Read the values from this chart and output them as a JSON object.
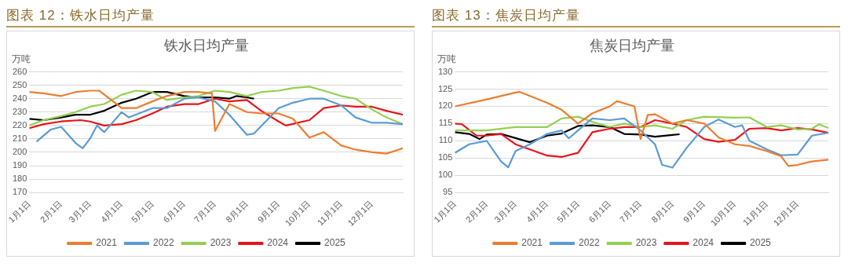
{
  "chart_data": [
    {
      "type": "line",
      "title": "图表 12：铁水日均产量",
      "subtitle": "铁水日均产量",
      "ylabel": "万吨",
      "xlim": [
        "--01-01",
        "--12-31"
      ],
      "xticks": [
        {
          "value": "--01-01",
          "label": "1月1日"
        },
        {
          "value": "--02-01",
          "label": "2月1日"
        },
        {
          "value": "--03-01",
          "label": "3月1日"
        },
        {
          "value": "--04-01",
          "label": "4月1日"
        },
        {
          "value": "--05-01",
          "label": "5月1日"
        },
        {
          "value": "--06-01",
          "label": "6月1日"
        },
        {
          "value": "--07-01",
          "label": "7月1日"
        },
        {
          "value": "--08-01",
          "label": "8月1日"
        },
        {
          "value": "--09-01",
          "label": "9月1日"
        },
        {
          "value": "--10-01",
          "label": "10月1日"
        },
        {
          "value": "--11-01",
          "label": "11月1日"
        },
        {
          "value": "--12-01",
          "label": "12月1日"
        }
      ],
      "ylim": [
        170,
        260
      ],
      "yticks": [
        170,
        180,
        190,
        200,
        210,
        220,
        230,
        240,
        250,
        260
      ],
      "grid": "y",
      "legend": "bottom",
      "marker": "none",
      "series": [
        {
          "name": "2021",
          "color": "#ed7d31",
          "x": [
            "--01-01",
            "--01-15",
            "--02-01",
            "--02-15",
            "--03-01",
            "--03-10",
            "--04-01",
            "--04-15",
            "--05-01",
            "--05-15",
            "--06-01",
            "--06-15",
            "--06-28",
            "--07-01",
            "--07-15",
            "--08-01",
            "--08-15",
            "--09-01",
            "--09-15",
            "--10-01",
            "--10-15",
            "--11-01",
            "--11-15",
            "--12-01",
            "--12-15",
            "--12-31"
          ],
          "values": [
            245,
            244,
            242,
            245,
            246,
            246,
            233,
            233,
            238,
            242,
            245,
            245,
            244,
            216,
            236,
            230,
            229,
            229,
            225,
            211,
            215,
            205,
            202,
            200,
            199,
            203
          ]
        },
        {
          "name": "2022",
          "color": "#5b9bd5",
          "x": [
            "--01-08",
            "--01-22",
            "--02-01",
            "--02-15",
            "--02-22",
            "--03-01",
            "--03-08",
            "--03-15",
            "--04-01",
            "--04-08",
            "--05-01",
            "--05-15",
            "--06-01",
            "--06-15",
            "--07-01",
            "--07-15",
            "--08-01",
            "--08-08",
            "--09-01",
            "--09-15",
            "--10-01",
            "--10-15",
            "--11-01",
            "--11-15",
            "--12-01",
            "--12-15",
            "--12-31"
          ],
          "values": [
            208,
            217,
            219,
            207,
            203,
            210,
            220,
            215,
            230,
            226,
            233,
            233,
            240,
            241,
            238,
            228,
            213,
            214,
            233,
            237,
            240,
            240,
            235,
            226,
            222,
            222,
            221
          ]
        },
        {
          "name": "2023",
          "color": "#92d050",
          "x": [
            "--01-01",
            "--01-15",
            "--02-01",
            "--02-15",
            "--03-01",
            "--03-15",
            "--04-01",
            "--04-15",
            "--05-01",
            "--05-15",
            "--06-01",
            "--06-15",
            "--07-01",
            "--07-15",
            "--08-01",
            "--08-15",
            "--09-01",
            "--09-15",
            "--10-01",
            "--10-15",
            "--11-01",
            "--11-15",
            "--12-01",
            "--12-15",
            "--12-31"
          ],
          "values": [
            220,
            224,
            227,
            230,
            234,
            236,
            243,
            246,
            245,
            239,
            241,
            242,
            246,
            245,
            242,
            245,
            246,
            248,
            249,
            246,
            242,
            240,
            232,
            226,
            221
          ]
        },
        {
          "name": "2024",
          "color": "#e8141a",
          "x": [
            "--01-01",
            "--01-15",
            "--02-01",
            "--02-20",
            "--03-01",
            "--03-15",
            "--04-01",
            "--04-15",
            "--05-01",
            "--05-15",
            "--06-01",
            "--06-15",
            "--07-01",
            "--07-15",
            "--08-01",
            "--08-15",
            "--09-01",
            "--09-08",
            "--10-01",
            "--10-15",
            "--11-01",
            "--11-15",
            "--12-01",
            "--12-15",
            "--12-31"
          ],
          "values": [
            218,
            221,
            223,
            224,
            223,
            220,
            221,
            224,
            229,
            234,
            236,
            236,
            240,
            238,
            239,
            231,
            223,
            220,
            224,
            233,
            235,
            234,
            234,
            231,
            228
          ]
        },
        {
          "name": "2025",
          "color": "#000000",
          "x": [
            "--01-01",
            "--01-15",
            "--02-01",
            "--02-15",
            "--03-01",
            "--03-15",
            "--04-01",
            "--04-15",
            "--05-01",
            "--05-15",
            "--06-01",
            "--06-15",
            "--07-01",
            "--07-15",
            "--07-22",
            "--08-01",
            "--08-08"
          ],
          "values": [
            225,
            224,
            226,
            228,
            228,
            231,
            237,
            240,
            245,
            245,
            242,
            241,
            241,
            240,
            242,
            241,
            240
          ]
        }
      ]
    },
    {
      "type": "line",
      "title": "图表 13：焦炭日均产量",
      "subtitle": "焦炭日均产量",
      "ylabel": "万吨",
      "xlim": [
        "--01-01",
        "--12-31"
      ],
      "xticks": [
        {
          "value": "--01-01",
          "label": "1月1日"
        },
        {
          "value": "--02-01",
          "label": "2月1日"
        },
        {
          "value": "--03-01",
          "label": "3月1日"
        },
        {
          "value": "--04-01",
          "label": "4月1日"
        },
        {
          "value": "--05-01",
          "label": "5月1日"
        },
        {
          "value": "--06-01",
          "label": "6月1日"
        },
        {
          "value": "--07-01",
          "label": "7月1日"
        },
        {
          "value": "--08-01",
          "label": "8月1日"
        },
        {
          "value": "--09-01",
          "label": "9月1日"
        },
        {
          "value": "--10-01",
          "label": "10月1日"
        },
        {
          "value": "--11-01",
          "label": "11月1日"
        },
        {
          "value": "--12-01",
          "label": "12月1日"
        }
      ],
      "ylim": [
        95,
        130
      ],
      "yticks": [
        95,
        100,
        105,
        110,
        115,
        120,
        125,
        130
      ],
      "grid": "y",
      "legend": "bottom",
      "marker": "none",
      "series": [
        {
          "name": "2021",
          "color": "#ed7d31",
          "x": [
            "--01-01",
            "--02-01",
            "--03-01",
            "--03-05",
            "--04-01",
            "--04-15",
            "--05-01",
            "--05-15",
            "--06-01",
            "--06-08",
            "--06-25",
            "--07-01",
            "--07-08",
            "--07-15",
            "--08-01",
            "--08-15",
            "--09-01",
            "--09-15",
            "--10-01",
            "--10-15",
            "--11-01",
            "--11-15",
            "--11-22",
            "--12-01",
            "--12-15",
            "--12-31"
          ],
          "values": [
            120,
            122,
            124,
            124.2,
            121,
            119,
            115,
            118,
            120,
            121.5,
            120,
            110.5,
            117.5,
            117.7,
            115,
            116,
            115,
            111,
            109,
            108.5,
            107,
            105.5,
            102.7,
            103,
            104,
            104.5
          ]
        },
        {
          "name": "2022",
          "color": "#5b9bd5",
          "x": [
            "--01-01",
            "--01-15",
            "--02-01",
            "--02-15",
            "--02-22",
            "--03-01",
            "--03-15",
            "--04-01",
            "--04-15",
            "--04-22",
            "--05-01",
            "--05-15",
            "--06-01",
            "--06-15",
            "--07-01",
            "--07-15",
            "--07-22",
            "--08-01",
            "--08-15",
            "--09-01",
            "--09-15",
            "--10-01",
            "--10-08",
            "--10-15",
            "--11-01",
            "--11-15",
            "--12-01",
            "--12-15",
            "--12-31"
          ],
          "values": [
            106.5,
            109,
            110,
            104,
            102.3,
            107,
            109,
            112,
            113,
            110.7,
            113,
            116.5,
            116,
            116.5,
            113,
            109,
            103,
            102.2,
            108,
            114,
            116.2,
            114,
            114.5,
            110,
            107.5,
            105.8,
            106,
            111.5,
            112.3
          ]
        },
        {
          "name": "2023",
          "color": "#92d050",
          "x": [
            "--01-01",
            "--02-01",
            "--03-01",
            "--04-01",
            "--04-15",
            "--05-01",
            "--05-15",
            "--06-01",
            "--06-15",
            "--07-01",
            "--07-15",
            "--08-01",
            "--08-15",
            "--09-01",
            "--10-01",
            "--10-15",
            "--11-01",
            "--11-15",
            "--12-01",
            "--12-15",
            "--12-22",
            "--12-31"
          ],
          "values": [
            113,
            113,
            114,
            114,
            116.5,
            117,
            115.5,
            114,
            115,
            114,
            114.5,
            113.5,
            116,
            117,
            116.7,
            116.8,
            114,
            114.5,
            113.3,
            113.5,
            114.8,
            113.7
          ]
        },
        {
          "name": "2024",
          "color": "#e8141a",
          "x": [
            "--01-01",
            "--01-08",
            "--01-22",
            "--02-01",
            "--02-15",
            "--03-01",
            "--03-15",
            "--04-01",
            "--04-15",
            "--05-01",
            "--05-15",
            "--06-01",
            "--06-15",
            "--07-01",
            "--07-15",
            "--08-01",
            "--08-15",
            "--09-01",
            "--09-15",
            "--10-01",
            "--10-15",
            "--11-01",
            "--11-15",
            "--12-01",
            "--12-15",
            "--12-31"
          ],
          "values": [
            115,
            114.8,
            111.5,
            111.5,
            112,
            109,
            107.5,
            105.7,
            105.3,
            106.5,
            112.5,
            113.5,
            114,
            114,
            116,
            115,
            114,
            110.5,
            109.7,
            110.3,
            113.5,
            113.7,
            113,
            113.7,
            113.3,
            112.3
          ]
        },
        {
          "name": "2025",
          "color": "#000000",
          "x": [
            "--01-01",
            "--01-15",
            "--01-25",
            "--02-01",
            "--02-15",
            "--03-01",
            "--03-15",
            "--04-01",
            "--04-15",
            "--05-01",
            "--05-15",
            "--06-01",
            "--06-15",
            "--07-01",
            "--07-15",
            "--08-01",
            "--08-08"
          ],
          "values": [
            112.5,
            112,
            110.5,
            111.8,
            112,
            110.8,
            109.6,
            111.5,
            112.1,
            114.3,
            114.5,
            114,
            112,
            111.8,
            111.2,
            111.7,
            111.9
          ]
        }
      ]
    }
  ]
}
